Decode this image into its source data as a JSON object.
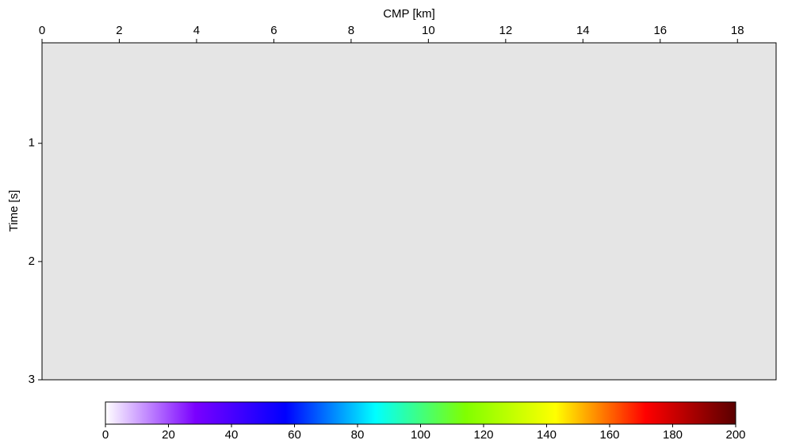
{
  "chart_data": {
    "type": "image",
    "xlabel": "CMP [km]",
    "ylabel": "Time  [s]",
    "xlim": [
      0,
      19.0
    ],
    "xticks": [
      0,
      2,
      4,
      6,
      8,
      10,
      12,
      14,
      16,
      18
    ],
    "ylim": [
      0.15,
      3
    ],
    "yticks": [
      1,
      2,
      3
    ],
    "background": "#e5e5e5",
    "colorbar": {
      "clim": [
        0,
        200
      ],
      "ticks": [
        0,
        20,
        40,
        60,
        80,
        100,
        120,
        140,
        160,
        180,
        200
      ],
      "colors": [
        "#ffffff",
        "#7a00ff",
        "#0000ff",
        "#00ffff",
        "#80ff00",
        "#ffff00",
        "#ff0000",
        "#5a0000"
      ]
    }
  }
}
